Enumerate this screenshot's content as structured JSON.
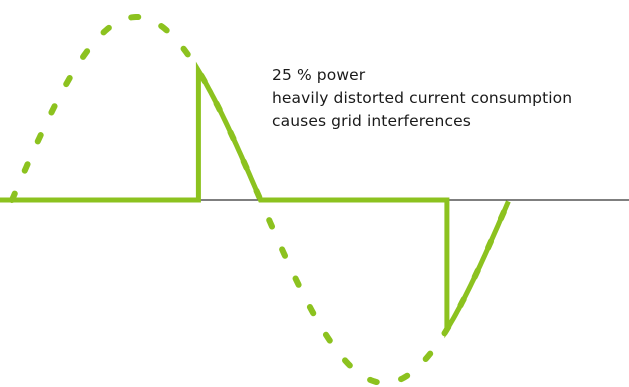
{
  "caption": {
    "lines": [
      "25 % power",
      "heavily distorted current consumption",
      "causes grid interferences"
    ]
  },
  "colors": {
    "waveform": "#8cc21f",
    "axis": "#333333",
    "text": "#1a1a1a",
    "background": "#ffffff"
  },
  "waveform": {
    "power_fraction": 0.25
  }
}
